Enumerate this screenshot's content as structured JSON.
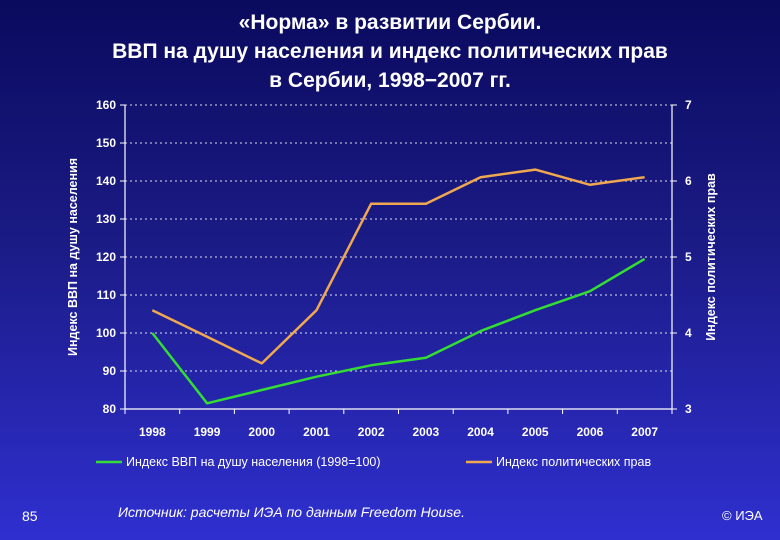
{
  "title": {
    "line1": "«Норма» в развитии Сербии.",
    "line2": "ВВП на душу населения и индекс политических прав",
    "line3": "в Сербии, 1998−2007 гг."
  },
  "footer": {
    "page_number": "85",
    "source": "Источник: расчеты ИЭА по данным Freedom House.",
    "copyright": "© ИЭА"
  },
  "colors": {
    "gdp_series": "#33dd33",
    "rights_series": "#f0a850",
    "grid": "#ffffff"
  },
  "chart_data": {
    "type": "line",
    "x": [
      "1998",
      "1999",
      "2000",
      "2001",
      "2002",
      "2003",
      "2004",
      "2005",
      "2006",
      "2007"
    ],
    "ylabel": "Индекс ВВП на душу населения",
    "y2label": "Индекс политических прав",
    "ylim": [
      80,
      160
    ],
    "yticks": [
      80,
      90,
      100,
      110,
      120,
      130,
      140,
      150,
      160
    ],
    "y2lim": [
      3,
      7
    ],
    "y2ticks": [
      3,
      4,
      5,
      6,
      7
    ],
    "grid": true,
    "legend_position": "bottom",
    "series": [
      {
        "name": "Индекс ВВП на душу населения (1998=100)",
        "axis": "left",
        "color": "#33dd33",
        "values": [
          100,
          81.5,
          85,
          88.5,
          91.5,
          93.5,
          100.5,
          106,
          111,
          119.5
        ]
      },
      {
        "name": "Индекс политических прав",
        "axis": "right",
        "color": "#f0a850",
        "values": [
          4.3,
          3.95,
          3.6,
          4.3,
          5.7,
          5.7,
          6.05,
          6.15,
          5.95,
          6.05
        ]
      }
    ]
  }
}
